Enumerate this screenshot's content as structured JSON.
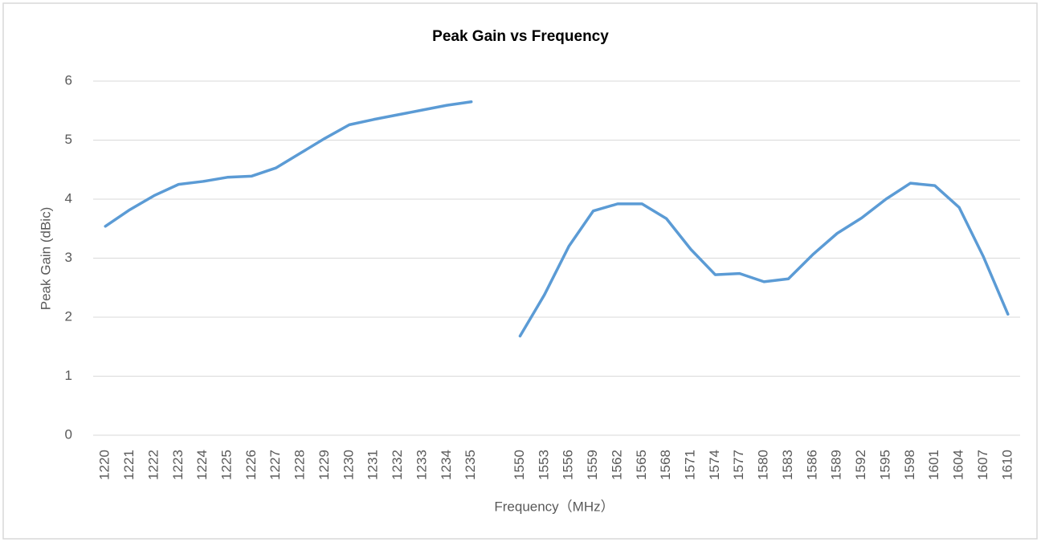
{
  "chart_data": {
    "type": "line",
    "title": "Peak Gain vs Frequency",
    "x_label": "Frequency（MHz）",
    "y_label": "Peak Gain (dBic)",
    "categories": [
      "1220",
      "1221",
      "1222",
      "1223",
      "1224",
      "1225",
      "1226",
      "1227",
      "1228",
      "1229",
      "1230",
      "1231",
      "1232",
      "1233",
      "1234",
      "1235",
      null,
      "1550",
      "1553",
      "1556",
      "1559",
      "1562",
      "1565",
      "1568",
      "1571",
      "1574",
      "1577",
      "1580",
      "1583",
      "1586",
      "1589",
      "1592",
      "1595",
      "1598",
      "1601",
      "1604",
      "1607",
      "1610"
    ],
    "series": [
      {
        "name": "Peak Gain",
        "color": "#5b9bd5",
        "values": [
          3.54,
          3.82,
          4.06,
          4.25,
          4.3,
          4.37,
          4.39,
          4.53,
          4.78,
          5.03,
          5.26,
          5.35,
          5.43,
          5.51,
          5.59,
          5.65,
          null,
          1.68,
          2.38,
          3.2,
          3.8,
          3.92,
          3.92,
          3.67,
          3.15,
          2.72,
          2.74,
          2.6,
          2.65,
          3.06,
          3.42,
          3.68,
          4.0,
          4.27,
          4.23,
          3.86,
          3.02,
          2.05
        ]
      }
    ],
    "ylim": [
      0,
      6
    ],
    "yticks": [
      0,
      1,
      2,
      3,
      4,
      5,
      6
    ],
    "grid": true
  }
}
